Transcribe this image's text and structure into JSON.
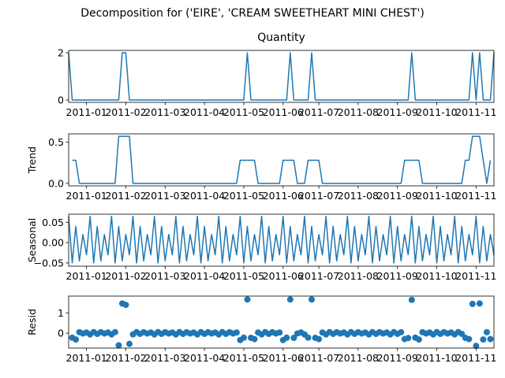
{
  "title": "Decomposition for ('EIRE', 'CREAM SWEETHEART MINI CHEST')",
  "chart_data": [
    {
      "type": "line",
      "title": "Quantity",
      "color": "#1f77b4",
      "xlim": [
        0,
        119
      ],
      "xticks": [
        {
          "value": 5,
          "label": "2011-01"
        },
        {
          "value": 16,
          "label": "2011-02"
        },
        {
          "value": 27,
          "label": "2011-03"
        },
        {
          "value": 38,
          "label": "2011-04"
        },
        {
          "value": 49,
          "label": "2011-05"
        },
        {
          "value": 60,
          "label": "2011-06"
        },
        {
          "value": 70,
          "label": "2011-07"
        },
        {
          "value": 81,
          "label": "2011-08"
        },
        {
          "value": 92,
          "label": "2011-09"
        },
        {
          "value": 103,
          "label": "2011-10"
        },
        {
          "value": 114,
          "label": "2011-11"
        }
      ],
      "ylim": [
        -0.1,
        2.1
      ],
      "yticks": [
        0,
        2
      ],
      "values": [
        2,
        0,
        0,
        0,
        0,
        0,
        0,
        0,
        0,
        0,
        0,
        0,
        0,
        0,
        0,
        2,
        2,
        0,
        0,
        0,
        0,
        0,
        0,
        0,
        0,
        0,
        0,
        0,
        0,
        0,
        0,
        0,
        0,
        0,
        0,
        0,
        0,
        0,
        0,
        0,
        0,
        0,
        0,
        0,
        0,
        0,
        0,
        0,
        0,
        0,
        2,
        0,
        0,
        0,
        0,
        0,
        0,
        0,
        0,
        0,
        0,
        0,
        2,
        0,
        0,
        0,
        0,
        0,
        2,
        0,
        0,
        0,
        0,
        0,
        0,
        0,
        0,
        0,
        0,
        0,
        0,
        0,
        0,
        0,
        0,
        0,
        0,
        0,
        0,
        0,
        0,
        0,
        0,
        0,
        0,
        0,
        2,
        0,
        0,
        0,
        0,
        0,
        0,
        0,
        0,
        0,
        0,
        0,
        0,
        0,
        0,
        0,
        0,
        2,
        0,
        2,
        0,
        0,
        0,
        2
      ]
    },
    {
      "type": "line",
      "ylabel": "Trend",
      "color": "#1f77b4",
      "xlim": [
        0,
        119
      ],
      "xticks": [
        {
          "value": 5,
          "label": "2011-01"
        },
        {
          "value": 16,
          "label": "2011-02"
        },
        {
          "value": 27,
          "label": "2011-03"
        },
        {
          "value": 38,
          "label": "2011-04"
        },
        {
          "value": 49,
          "label": "2011-05"
        },
        {
          "value": 60,
          "label": "2011-06"
        },
        {
          "value": 70,
          "label": "2011-07"
        },
        {
          "value": 81,
          "label": "2011-08"
        },
        {
          "value": 92,
          "label": "2011-09"
        },
        {
          "value": 103,
          "label": "2011-10"
        },
        {
          "value": 114,
          "label": "2011-11"
        }
      ],
      "ylim": [
        -0.03,
        0.6
      ],
      "yticks": [
        {
          "value": 0,
          "label": "0.0"
        },
        {
          "value": 0.5,
          "label": "0.5"
        }
      ],
      "values": [
        null,
        0.28,
        0.28,
        0,
        0,
        0,
        0,
        0,
        0,
        0,
        0,
        0,
        0,
        0,
        0.57,
        0.57,
        0.57,
        0.57,
        0,
        0,
        0,
        0,
        0,
        0,
        0,
        0,
        0,
        0,
        0,
        0,
        0,
        0,
        0,
        0,
        0,
        0,
        0,
        0,
        0,
        0,
        0,
        0,
        0,
        0,
        0,
        0,
        0,
        0,
        0.28,
        0.28,
        0.28,
        0.28,
        0.28,
        0,
        0,
        0,
        0,
        0,
        0,
        0,
        0.28,
        0.28,
        0.28,
        0.28,
        0,
        0,
        0,
        0.28,
        0.28,
        0.28,
        0.28,
        0,
        0,
        0,
        0,
        0,
        0,
        0,
        0,
        0,
        0,
        0,
        0,
        0,
        0,
        0,
        0,
        0,
        0,
        0,
        0,
        0,
        0,
        0,
        0.28,
        0.28,
        0.28,
        0.28,
        0.28,
        0,
        0,
        0,
        0,
        0,
        0,
        0,
        0,
        0,
        0,
        0,
        0,
        0.28,
        0.28,
        0.57,
        0.57,
        0.57,
        0.28,
        0,
        0.28,
        null
      ]
    },
    {
      "type": "line",
      "ylabel": "Seasonal",
      "color": "#1f77b4",
      "xlim": [
        0,
        119
      ],
      "xticks": [
        {
          "value": 5,
          "label": "2011-01"
        },
        {
          "value": 16,
          "label": "2011-02"
        },
        {
          "value": 27,
          "label": "2011-03"
        },
        {
          "value": 38,
          "label": "2011-04"
        },
        {
          "value": 49,
          "label": "2011-05"
        },
        {
          "value": 60,
          "label": "2011-06"
        },
        {
          "value": 70,
          "label": "2011-07"
        },
        {
          "value": 81,
          "label": "2011-08"
        },
        {
          "value": 92,
          "label": "2011-09"
        },
        {
          "value": 103,
          "label": "2011-10"
        },
        {
          "value": 114,
          "label": "2011-11"
        }
      ],
      "ylim": [
        -0.058,
        0.07
      ],
      "yticks": [
        {
          "value": -0.05,
          "label": "−0.05"
        },
        {
          "value": 0,
          "label": "0.00"
        },
        {
          "value": 0.05,
          "label": "0.05"
        }
      ],
      "values": [
        0.065,
        -0.05,
        0.04,
        -0.045,
        0.02,
        -0.03,
        0.065,
        -0.05,
        0.04,
        -0.045,
        0.02,
        -0.03,
        0.065,
        -0.05,
        0.04,
        -0.045,
        0.02,
        -0.03,
        0.065,
        -0.05,
        0.04,
        -0.045,
        0.02,
        -0.03,
        0.065,
        -0.05,
        0.04,
        -0.045,
        0.02,
        -0.03,
        0.065,
        -0.05,
        0.04,
        -0.045,
        0.02,
        -0.03,
        0.065,
        -0.05,
        0.04,
        -0.045,
        0.02,
        -0.03,
        0.065,
        -0.05,
        0.04,
        -0.045,
        0.02,
        -0.03,
        0.065,
        -0.05,
        0.04,
        -0.045,
        0.02,
        -0.03,
        0.065,
        -0.05,
        0.04,
        -0.045,
        0.02,
        -0.03,
        0.065,
        -0.05,
        0.04,
        -0.045,
        0.02,
        -0.03,
        0.065,
        -0.05,
        0.04,
        -0.045,
        0.02,
        -0.03,
        0.065,
        -0.05,
        0.04,
        -0.045,
        0.02,
        -0.03,
        0.065,
        -0.05,
        0.04,
        -0.045,
        0.02,
        -0.03,
        0.065,
        -0.05,
        0.04,
        -0.045,
        0.02,
        -0.03,
        0.065,
        -0.05,
        0.04,
        -0.045,
        0.02,
        -0.03,
        0.065,
        -0.05,
        0.04,
        -0.045,
        0.02,
        -0.03,
        0.065,
        -0.05,
        0.04,
        -0.045,
        0.02,
        -0.03,
        0.065,
        -0.05,
        0.04,
        -0.045,
        0.02,
        -0.03,
        0.065,
        -0.05,
        0.04,
        -0.045,
        0.02,
        -0.03
      ]
    },
    {
      "type": "scatter",
      "ylabel": "Resid",
      "color": "#1f77b4",
      "xlim": [
        0,
        119
      ],
      "xticks": [
        {
          "value": 5,
          "label": "2011-01"
        },
        {
          "value": 16,
          "label": "2011-02"
        },
        {
          "value": 27,
          "label": "2011-03"
        },
        {
          "value": 38,
          "label": "2011-04"
        },
        {
          "value": 49,
          "label": "2011-05"
        },
        {
          "value": 60,
          "label": "2011-06"
        },
        {
          "value": 70,
          "label": "2011-07"
        },
        {
          "value": 81,
          "label": "2011-08"
        },
        {
          "value": 92,
          "label": "2011-09"
        },
        {
          "value": 103,
          "label": "2011-10"
        },
        {
          "value": 114,
          "label": "2011-11"
        }
      ],
      "ylim": [
        -0.75,
        1.85
      ],
      "yticks": [
        0,
        1
      ],
      "values": [
        null,
        -0.23,
        -0.32,
        0.045,
        -0.02,
        0.03,
        -0.065,
        0.05,
        -0.04,
        0.045,
        -0.02,
        0.03,
        -0.065,
        0.05,
        -0.61,
        1.48,
        1.41,
        -0.54,
        -0.065,
        0.05,
        -0.04,
        0.045,
        -0.02,
        0.03,
        -0.065,
        0.05,
        -0.04,
        0.045,
        -0.02,
        0.03,
        -0.065,
        0.05,
        -0.04,
        0.045,
        -0.02,
        0.03,
        -0.065,
        0.05,
        -0.04,
        0.045,
        -0.02,
        0.03,
        -0.065,
        0.05,
        -0.04,
        0.045,
        -0.02,
        0.03,
        -0.35,
        -0.23,
        1.68,
        -0.24,
        -0.3,
        0.03,
        -0.065,
        0.05,
        -0.04,
        0.045,
        -0.02,
        0.03,
        -0.35,
        -0.23,
        1.68,
        -0.24,
        -0.02,
        0.03,
        -0.065,
        -0.23,
        1.68,
        -0.24,
        -0.3,
        0.03,
        -0.065,
        0.05,
        -0.04,
        0.045,
        -0.02,
        0.03,
        -0.065,
        0.05,
        -0.04,
        0.045,
        -0.02,
        0.03,
        -0.065,
        0.05,
        -0.04,
        0.045,
        -0.02,
        0.03,
        -0.065,
        0.05,
        -0.04,
        0.045,
        -0.3,
        -0.25,
        1.66,
        -0.23,
        -0.32,
        0.045,
        -0.02,
        0.03,
        -0.065,
        0.05,
        -0.04,
        0.045,
        -0.02,
        0.03,
        -0.065,
        0.05,
        -0.04,
        -0.24,
        -0.3,
        1.46,
        -0.64,
        1.48,
        -0.32,
        0.045,
        -0.3,
        null
      ]
    }
  ]
}
